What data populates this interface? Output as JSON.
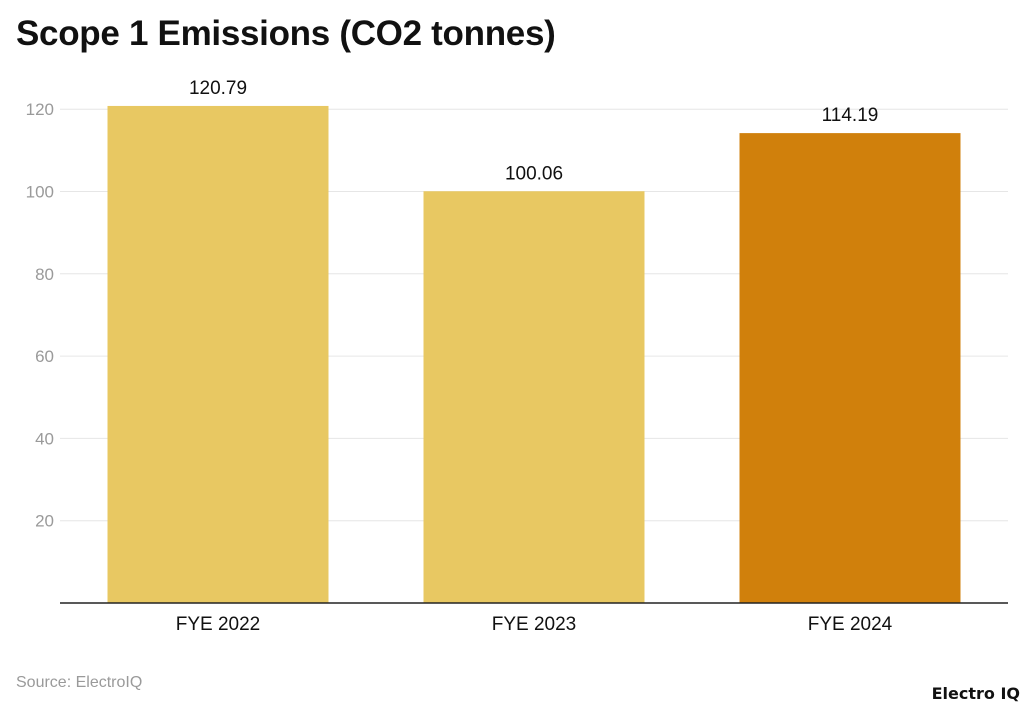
{
  "chart_data": {
    "type": "bar",
    "title": "Scope 1 Emissions (CO2 tonnes)",
    "categories": [
      "FYE 2022",
      "FYE 2023",
      "FYE 2024"
    ],
    "values": [
      120.79,
      100.06,
      114.19
    ],
    "value_labels": [
      "120.79",
      "100.06",
      "114.19"
    ],
    "bar_colors": [
      "#e8c862",
      "#e8c862",
      "#d0800c"
    ],
    "xlabel": "",
    "ylabel": "",
    "ylim": [
      0,
      120
    ],
    "yticks": [
      20,
      40,
      60,
      80,
      100,
      120
    ],
    "grid": true,
    "legend": "none"
  },
  "footer": {
    "source": "Source: ElectroIQ",
    "brand": "Electro IQ"
  },
  "colors": {
    "grid": "#e6e6e6",
    "axis": "#222222",
    "tick_label": "#9a9a9a",
    "text": "#111111"
  }
}
